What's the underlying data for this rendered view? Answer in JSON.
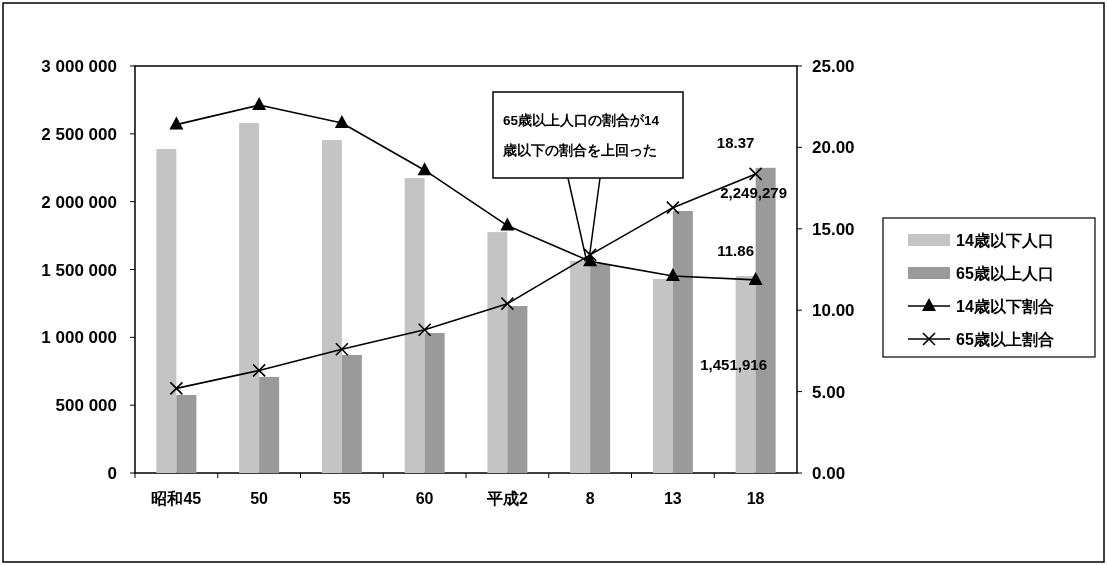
{
  "chart_data": {
    "type": "bar",
    "categories": [
      "昭和45",
      "50",
      "55",
      "60",
      "平成2",
      "8",
      "13",
      "18"
    ],
    "series": [
      {
        "name": "14歳以下人口",
        "color": "#c4c4c4",
        "values": [
          2388000,
          2580000,
          2454000,
          2174000,
          1776000,
          1563000,
          1430000,
          1451916
        ],
        "value_labels": [
          null,
          null,
          null,
          null,
          null,
          null,
          null,
          "1,451,916"
        ]
      },
      {
        "name": "65歳以上人口",
        "color": "#9a9a9a",
        "values": [
          575000,
          708000,
          870000,
          1032000,
          1231000,
          1540000,
          1931000,
          2249279
        ],
        "value_labels": [
          null,
          null,
          null,
          null,
          null,
          null,
          null,
          "2,249,279"
        ]
      },
      {
        "name": "14歳以下割合",
        "type": "line",
        "axis": "y2",
        "marker": "triangle",
        "color": "#000000",
        "values": [
          21.4,
          22.6,
          21.5,
          18.6,
          15.2,
          13.0,
          12.1,
          11.86
        ],
        "value_labels": [
          null,
          null,
          null,
          null,
          null,
          null,
          null,
          "11.86"
        ]
      },
      {
        "name": "65歳以上割合",
        "type": "line",
        "axis": "y2",
        "marker": "cross",
        "color": "#000000",
        "values": [
          5.2,
          6.3,
          7.6,
          8.8,
          10.4,
          13.4,
          16.3,
          18.37
        ],
        "value_labels": [
          null,
          null,
          null,
          null,
          null,
          null,
          null,
          "18.37"
        ]
      }
    ],
    "ylim": [
      0,
      3000000
    ],
    "yticks": [
      {
        "value": 0,
        "label": "0"
      },
      {
        "value": 500000,
        "label": "500 000"
      },
      {
        "value": 1000000,
        "label": "1 000 000"
      },
      {
        "value": 1500000,
        "label": "1 500 000"
      },
      {
        "value": 2000000,
        "label": "2 000 000"
      },
      {
        "value": 2500000,
        "label": "2 500 000"
      },
      {
        "value": 3000000,
        "label": "3 000 000"
      }
    ],
    "y2lim": [
      0,
      25
    ],
    "y2ticks": [
      {
        "value": 0,
        "label": "0.00"
      },
      {
        "value": 5,
        "label": "5.00"
      },
      {
        "value": 10,
        "label": "10.00"
      },
      {
        "value": 15,
        "label": "15.00"
      },
      {
        "value": 20,
        "label": "20.00"
      },
      {
        "value": 25,
        "label": "25.00"
      }
    ],
    "annotations": [
      "65歳以上人口の割合が14歳以下の割合を上回った"
    ],
    "legend": "right",
    "grid": false
  }
}
